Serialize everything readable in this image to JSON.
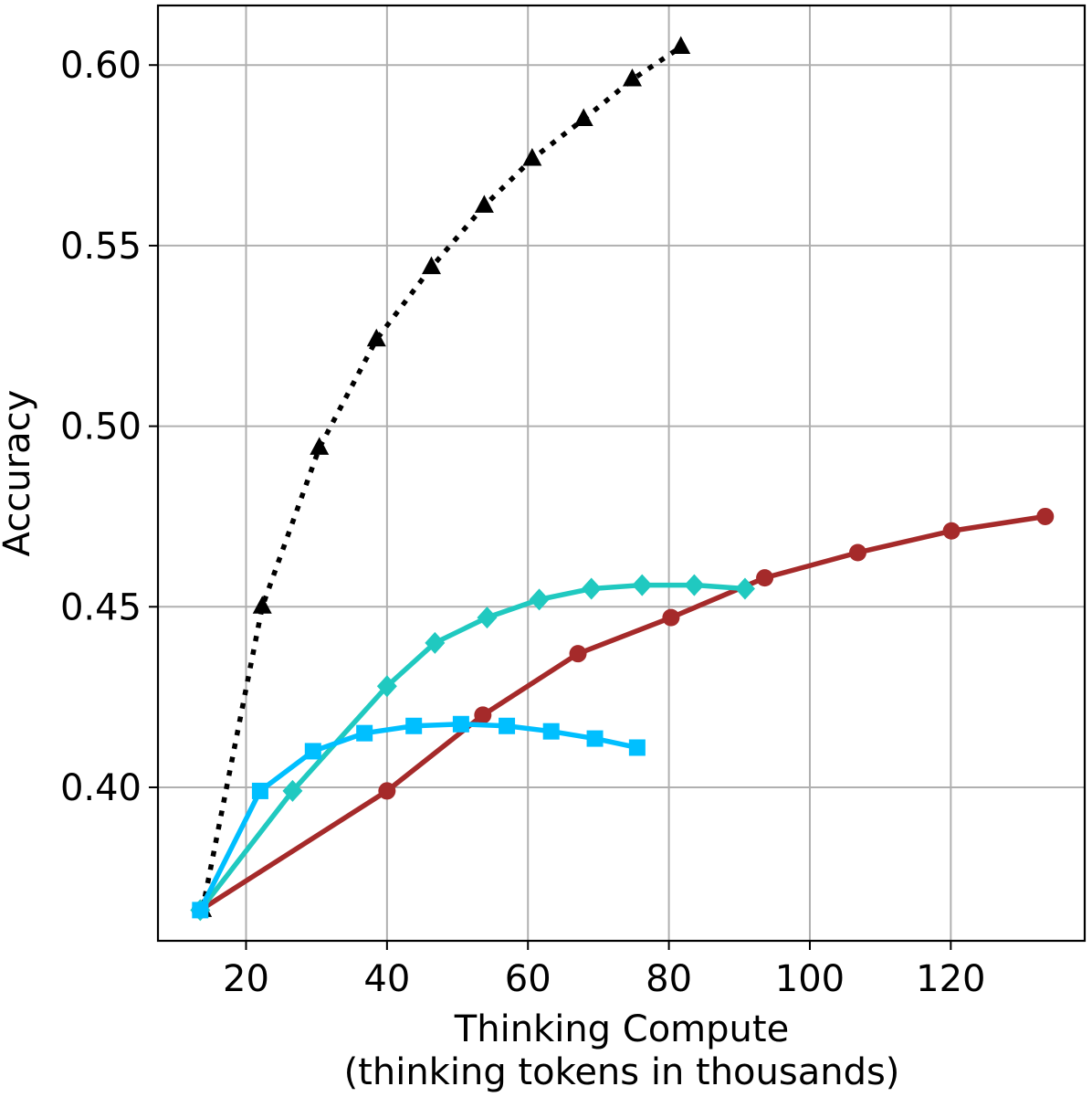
{
  "chart_data": {
    "type": "line",
    "xlabel_line1": "Thinking Compute",
    "xlabel_line2": "(thinking tokens in thousands)",
    "ylabel": "Accuracy",
    "xlim": [
      7.5,
      139
    ],
    "ylim": [
      0.3575,
      0.6165
    ],
    "xticks": [
      20,
      40,
      60,
      80,
      100,
      120
    ],
    "yticks": [
      0.4,
      0.45,
      0.5,
      0.55,
      0.6
    ],
    "xtick_labels": [
      "20",
      "40",
      "60",
      "80",
      "100",
      "120"
    ],
    "ytick_labels": [
      "0.40",
      "0.45",
      "0.50",
      "0.55",
      "0.60"
    ],
    "grid": true,
    "series": [
      {
        "color": "#000000",
        "line_style": "dotted",
        "marker": "triangle",
        "x": [
          13.8,
          22.3,
          30.4,
          38.5,
          46.3,
          53.8,
          60.6,
          67.9,
          74.8,
          81.7
        ],
        "y": [
          0.366,
          0.45,
          0.494,
          0.524,
          0.544,
          0.561,
          0.574,
          0.585,
          0.596,
          0.605
        ]
      },
      {
        "color": "#a52a2a",
        "line_style": "solid",
        "marker": "circle",
        "x": [
          13.5,
          40.0,
          53.6,
          67.1,
          80.3,
          93.6,
          106.8,
          120.1,
          133.4
        ],
        "y": [
          0.366,
          0.399,
          0.42,
          0.437,
          0.447,
          0.458,
          0.465,
          0.471,
          0.475
        ]
      },
      {
        "color": "#20c9c0",
        "line_style": "solid",
        "marker": "diamond",
        "x": [
          13.5,
          26.6,
          40.0,
          46.8,
          54.2,
          61.6,
          69.0,
          76.2,
          83.6,
          90.8
        ],
        "y": [
          0.366,
          0.399,
          0.428,
          0.44,
          0.447,
          0.452,
          0.455,
          0.456,
          0.456,
          0.455
        ]
      },
      {
        "color": "#00bfff",
        "line_style": "solid",
        "marker": "square",
        "x": [
          13.5,
          22.0,
          29.5,
          36.8,
          43.8,
          50.5,
          57.0,
          63.3,
          69.5,
          75.5
        ],
        "y": [
          0.366,
          0.399,
          0.41,
          0.415,
          0.417,
          0.4175,
          0.417,
          0.4155,
          0.4135,
          0.411
        ]
      }
    ]
  }
}
